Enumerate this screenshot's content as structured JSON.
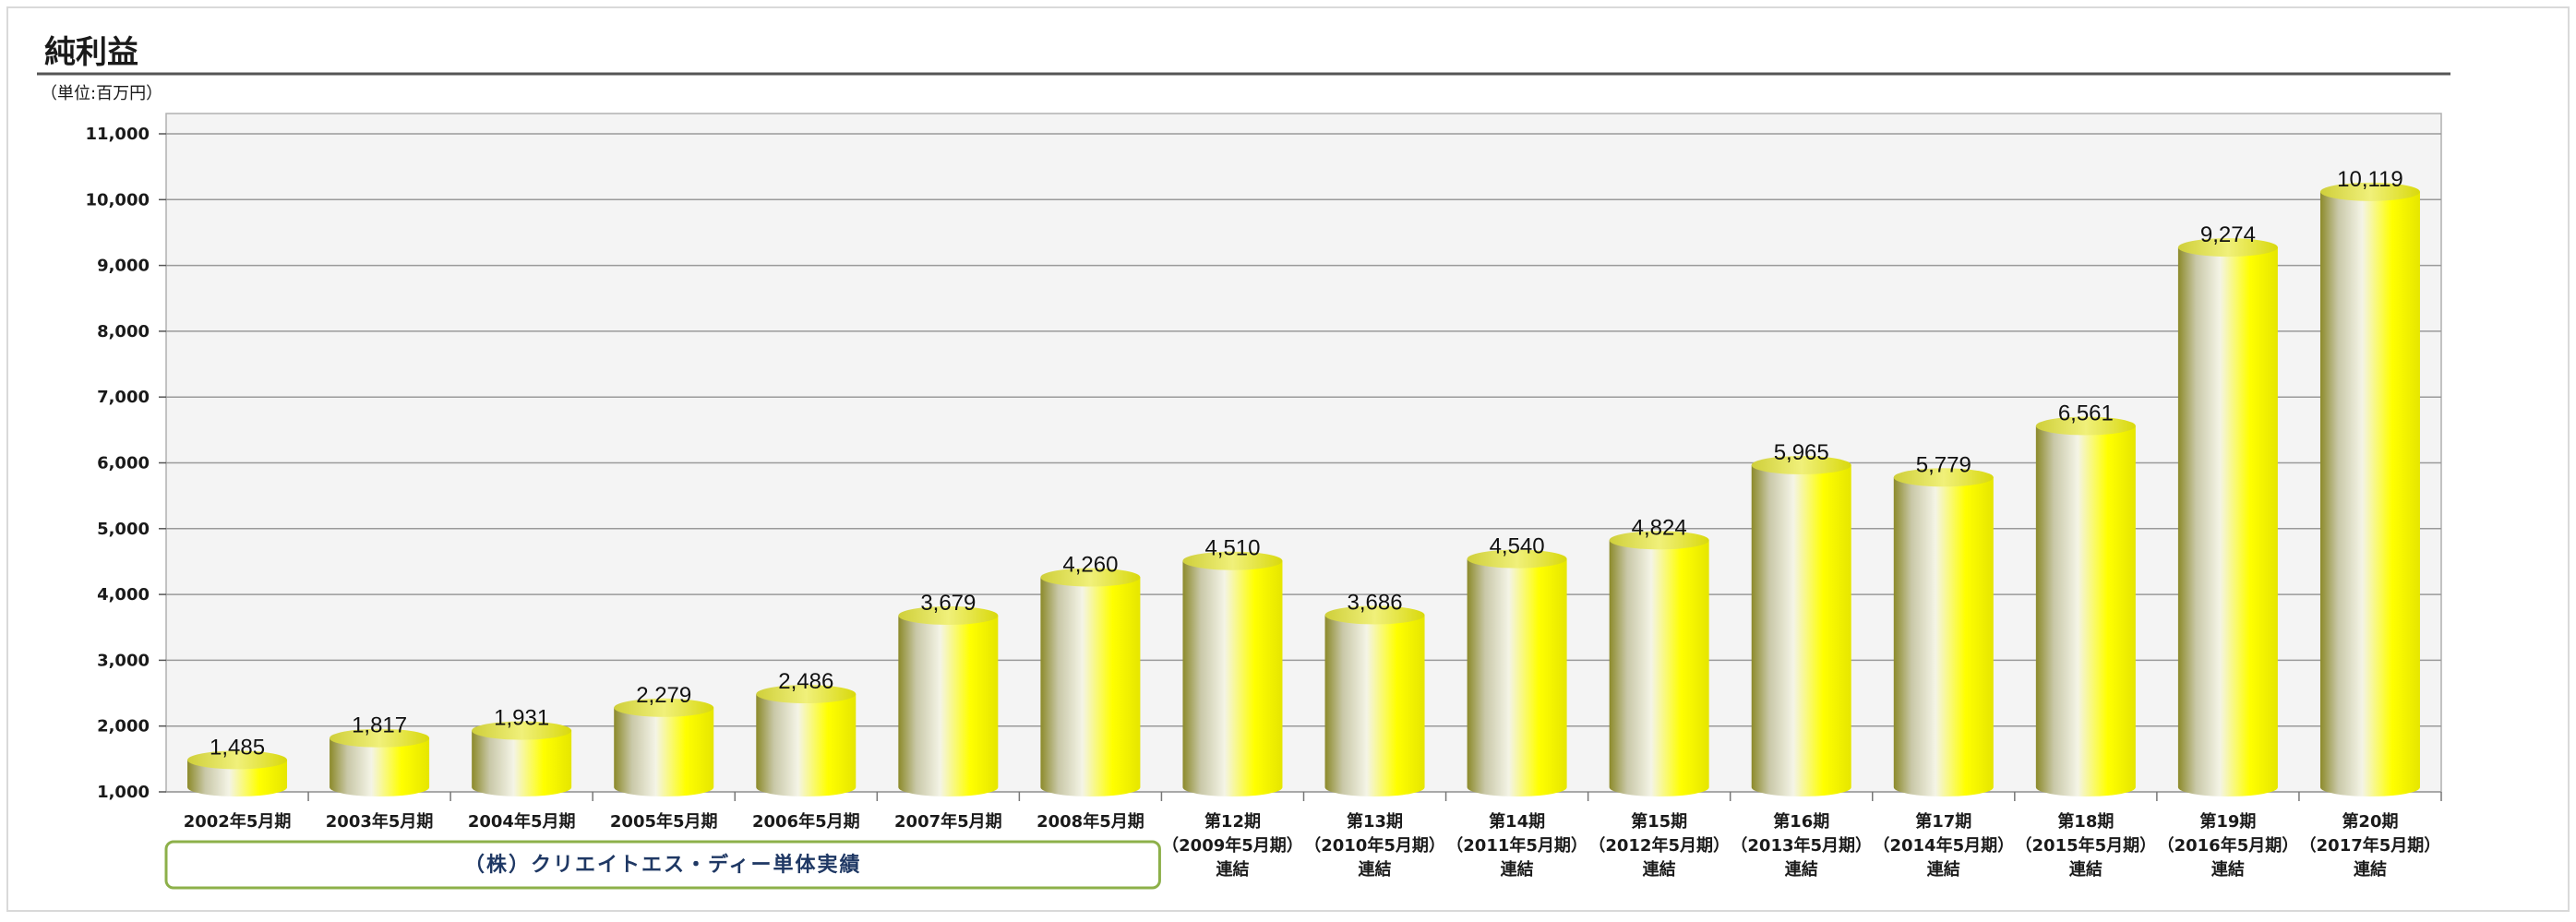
{
  "title": "純利益",
  "unit_label": "（単位:百万円）",
  "group_label": "（株）クリエイトエス・ディー単体実績",
  "colors": {
    "bar_light": "#ffff00",
    "bar_dark": "#8c8a2a",
    "bar_mid": "#f4f4e6",
    "plot_bg": "#f4f4f4",
    "grid": "#9a9a9a",
    "title_rule": "#555555",
    "group_border": "#8db04a",
    "group_text": "#1f3864"
  },
  "chart_data": {
    "type": "bar",
    "style": "3d-cylinder",
    "title": "純利益",
    "ylabel": "",
    "xlabel": "",
    "ylim": [
      1000,
      11000
    ],
    "yticks": [
      "1,000",
      "2,000",
      "3,000",
      "4,000",
      "5,000",
      "6,000",
      "7,000",
      "8,000",
      "9,000",
      "10,000",
      "11,000"
    ],
    "grid": true,
    "legend": "none",
    "categories": [
      [
        "2002年5月期"
      ],
      [
        "2003年5月期"
      ],
      [
        "2004年5月期"
      ],
      [
        "2005年5月期"
      ],
      [
        "2006年5月期"
      ],
      [
        "2007年5月期"
      ],
      [
        "2008年5月期"
      ],
      [
        "第12期",
        "（2009年5月期）",
        "連結"
      ],
      [
        "第13期",
        "（2010年5月期）",
        "連結"
      ],
      [
        "第14期",
        "（2011年5月期）",
        "連結"
      ],
      [
        "第15期",
        "（2012年5月期）",
        "連結"
      ],
      [
        "第16期",
        "（2013年5月期）",
        "連結"
      ],
      [
        "第17期",
        "（2014年5月期）",
        "連結"
      ],
      [
        "第18期",
        "（2015年5月期）",
        "連結"
      ],
      [
        "第19期",
        "（2016年5月期）",
        "連結"
      ],
      [
        "第20期",
        "（2017年5月期）",
        "連結"
      ]
    ],
    "values": [
      1485,
      1817,
      1931,
      2279,
      2486,
      3679,
      4260,
      4510,
      3686,
      4540,
      4824,
      5965,
      5779,
      6561,
      9274,
      10119
    ],
    "value_labels": [
      "1,485",
      "1,817",
      "1,931",
      "2,279",
      "2,486",
      "3,679",
      "4,260",
      "4,510",
      "3,686",
      "4,540",
      "4,824",
      "5,965",
      "5,779",
      "6,561",
      "9,274",
      "10,119"
    ],
    "group_span": {
      "from_index": 0,
      "to_index": 6
    }
  }
}
